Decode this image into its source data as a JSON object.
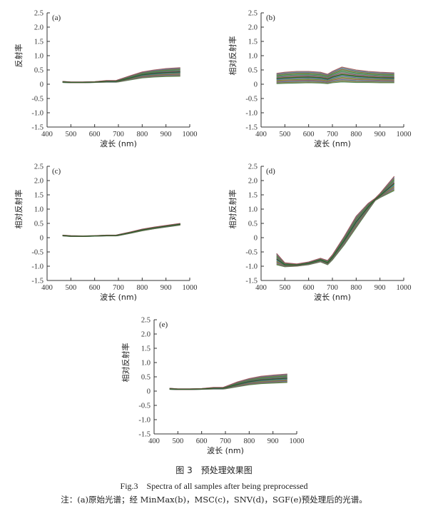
{
  "figure": {
    "caption_zh": "图 3　预处理效果图",
    "caption_en": "Fig.3　Spectra of all samples after being preprocessed",
    "note": "注：(a)原始光谱；经 MinMax(b)，MSC(c)，SNV(d)，SGF(e)预处理后的光谱。"
  },
  "chart_data": [
    {
      "type": "line",
      "panel": "(a)",
      "xlabel": "波长 (nm)",
      "ylabel": "反射率",
      "xlim": [
        400,
        1000
      ],
      "ylim": [
        -1.5,
        2.5
      ],
      "xticks": [
        400,
        500,
        600,
        700,
        800,
        900,
        1000
      ],
      "yticks": [
        2.5,
        2.0,
        1.5,
        1.0,
        0.5,
        0,
        -0.5,
        -1.0,
        -1.5
      ],
      "grid": false,
      "band": {
        "x": [
          465,
          500,
          550,
          600,
          650,
          690,
          700,
          750,
          800,
          850,
          900,
          960
        ],
        "upper": [
          0.1,
          0.08,
          0.08,
          0.09,
          0.13,
          0.13,
          0.16,
          0.3,
          0.43,
          0.5,
          0.55,
          0.58
        ],
        "lower": [
          0.06,
          0.05,
          0.05,
          0.06,
          0.07,
          0.07,
          0.08,
          0.15,
          0.22,
          0.25,
          0.27,
          0.28
        ],
        "mean": [
          0.08,
          0.065,
          0.065,
          0.075,
          0.1,
          0.1,
          0.12,
          0.22,
          0.33,
          0.38,
          0.41,
          0.43
        ]
      }
    },
    {
      "type": "line",
      "panel": "(b)",
      "xlabel": "波长 (nm)",
      "ylabel": "相对反射率",
      "xlim": [
        400,
        1000
      ],
      "ylim": [
        -1.5,
        2.5
      ],
      "xticks": [
        400,
        500,
        600,
        700,
        800,
        900,
        1000
      ],
      "yticks": [
        2.5,
        2.0,
        1.5,
        1.0,
        0.5,
        0,
        -0.5,
        -1.0,
        -1.5
      ],
      "grid": false,
      "band": {
        "x": [
          465,
          500,
          550,
          600,
          650,
          680,
          700,
          740,
          800,
          850,
          900,
          960
        ],
        "upper": [
          0.38,
          0.42,
          0.45,
          0.45,
          0.42,
          0.35,
          0.45,
          0.6,
          0.5,
          0.45,
          0.42,
          0.4
        ],
        "lower": [
          0.02,
          0.03,
          0.04,
          0.05,
          0.04,
          0.02,
          0.05,
          0.08,
          0.06,
          0.06,
          0.05,
          0.05
        ],
        "mean": [
          0.2,
          0.22,
          0.24,
          0.25,
          0.23,
          0.18,
          0.25,
          0.34,
          0.28,
          0.25,
          0.23,
          0.22
        ]
      }
    },
    {
      "type": "line",
      "panel": "(c)",
      "xlabel": "波长 (nm)",
      "ylabel": "相对反射率",
      "xlim": [
        400,
        1000
      ],
      "ylim": [
        -1.5,
        2.5
      ],
      "xticks": [
        400,
        500,
        600,
        700,
        800,
        900,
        1000
      ],
      "yticks": [
        2.5,
        2.0,
        1.5,
        1.0,
        0.5,
        0,
        -0.5,
        -1.0,
        -1.5
      ],
      "grid": false,
      "band": {
        "x": [
          465,
          500,
          550,
          600,
          650,
          690,
          700,
          750,
          800,
          850,
          900,
          960
        ],
        "upper": [
          0.09,
          0.07,
          0.06,
          0.07,
          0.09,
          0.09,
          0.11,
          0.2,
          0.3,
          0.37,
          0.43,
          0.5
        ],
        "lower": [
          0.06,
          0.04,
          0.04,
          0.05,
          0.06,
          0.06,
          0.07,
          0.15,
          0.24,
          0.31,
          0.37,
          0.44
        ],
        "mean": [
          0.075,
          0.055,
          0.05,
          0.06,
          0.075,
          0.075,
          0.09,
          0.175,
          0.27,
          0.34,
          0.4,
          0.47
        ]
      }
    },
    {
      "type": "line",
      "panel": "(d)",
      "xlabel": "波长 (nm)",
      "ylabel": "相对反射率",
      "xlim": [
        400,
        1000
      ],
      "ylim": [
        -1.5,
        2.5
      ],
      "xticks": [
        400,
        500,
        600,
        700,
        800,
        900,
        1000
      ],
      "yticks": [
        2.5,
        2.0,
        1.5,
        1.0,
        0.5,
        0,
        -0.5,
        -1.0,
        -1.5
      ],
      "grid": false,
      "band": {
        "x": [
          465,
          500,
          550,
          600,
          650,
          680,
          700,
          750,
          800,
          850,
          880,
          900,
          960
        ],
        "upper": [
          -0.55,
          -0.88,
          -0.92,
          -0.85,
          -0.72,
          -0.8,
          -0.6,
          0.05,
          0.75,
          1.2,
          1.38,
          1.55,
          2.15
        ],
        "lower": [
          -0.95,
          -1.02,
          -1.0,
          -0.95,
          -0.85,
          -0.95,
          -0.78,
          -0.25,
          0.35,
          0.95,
          1.3,
          1.4,
          1.65
        ],
        "mean": [
          -0.75,
          -0.95,
          -0.96,
          -0.9,
          -0.78,
          -0.88,
          -0.69,
          -0.1,
          0.55,
          1.07,
          1.34,
          1.47,
          1.9
        ]
      }
    },
    {
      "type": "line",
      "panel": "(e)",
      "xlabel": "波长 (nm)",
      "ylabel": "相对反射率",
      "xlim": [
        400,
        1000
      ],
      "ylim": [
        -1.5,
        2.5
      ],
      "xticks": [
        400,
        500,
        600,
        700,
        800,
        900,
        1000
      ],
      "yticks": [
        2.5,
        2.0,
        1.5,
        1.0,
        0.5,
        0,
        -0.5,
        -1.0,
        -1.5
      ],
      "grid": false,
      "band": {
        "x": [
          465,
          500,
          550,
          600,
          650,
          690,
          700,
          750,
          800,
          850,
          900,
          960
        ],
        "upper": [
          0.1,
          0.08,
          0.08,
          0.09,
          0.13,
          0.13,
          0.16,
          0.32,
          0.44,
          0.52,
          0.56,
          0.6
        ],
        "lower": [
          0.06,
          0.05,
          0.05,
          0.06,
          0.07,
          0.07,
          0.08,
          0.15,
          0.22,
          0.26,
          0.28,
          0.3
        ],
        "mean": [
          0.08,
          0.065,
          0.065,
          0.075,
          0.1,
          0.1,
          0.12,
          0.23,
          0.33,
          0.39,
          0.42,
          0.45
        ]
      }
    }
  ]
}
